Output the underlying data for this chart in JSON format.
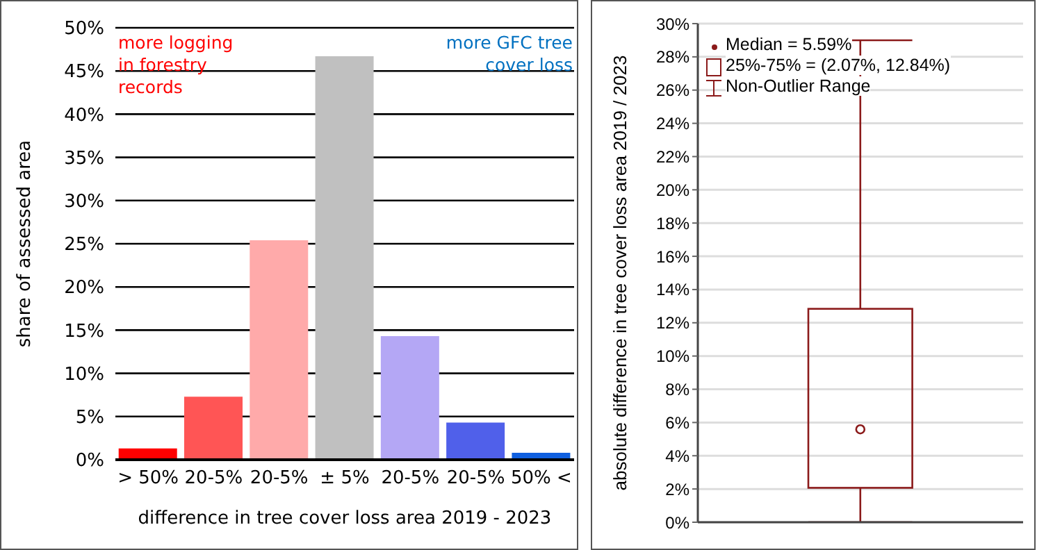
{
  "chart_data": [
    {
      "type": "bar",
      "xlabel": "difference in tree cover loss area 2019 - 2023",
      "ylabel": "share of assessed area",
      "categories": [
        "> 50%",
        "20-5%",
        "20-5%",
        "± 5%",
        "20-5%",
        "20-5%",
        "50% <"
      ],
      "values": [
        1.3,
        7.3,
        25.4,
        46.7,
        14.3,
        4.3,
        0.8
      ],
      "colors": [
        "#ff0000",
        "#ff5555",
        "#ffaaaa",
        "#c0c0c0",
        "#b4a7f5",
        "#5060ea",
        "#1060e0"
      ],
      "ylim": [
        0,
        50
      ],
      "yticks": [
        {
          "value": 0,
          "label": "0%"
        },
        {
          "value": 5,
          "label": "5%"
        },
        {
          "value": 10,
          "label": "10%"
        },
        {
          "value": 15,
          "label": "15%"
        },
        {
          "value": 20,
          "label": "20%"
        },
        {
          "value": 25,
          "label": "25%"
        },
        {
          "value": 30,
          "label": "30%"
        },
        {
          "value": 35,
          "label": "35%"
        },
        {
          "value": 40,
          "label": "40%"
        },
        {
          "value": 45,
          "label": "45%"
        },
        {
          "value": 50,
          "label": "50%"
        }
      ],
      "grid": "y",
      "annotations": [
        "more logging in forestry records",
        "more GFC tree cover loss"
      ]
    },
    {
      "type": "box",
      "ylabel": "absolute difference in tree cover loss area 2019 / 2023",
      "categories": [
        null
      ],
      "boxes": [
        {
          "low": 0,
          "q1": 2.07,
          "median": 5.59,
          "q3": 12.84,
          "high": 29
        }
      ],
      "color": "#8b1a1a",
      "ylim": [
        0,
        30
      ],
      "yticks": [
        {
          "value": 0,
          "label": "0%"
        },
        {
          "value": 2,
          "label": "2%"
        },
        {
          "value": 4,
          "label": "4%"
        },
        {
          "value": 6,
          "label": "6%"
        },
        {
          "value": 8,
          "label": "8%"
        },
        {
          "value": 10,
          "label": "10%"
        },
        {
          "value": 12,
          "label": "12%"
        },
        {
          "value": 14,
          "label": "14%"
        },
        {
          "value": 16,
          "label": "16%"
        },
        {
          "value": 18,
          "label": "18%"
        },
        {
          "value": 20,
          "label": "20%"
        },
        {
          "value": 22,
          "label": "22%"
        },
        {
          "value": 24,
          "label": "24%"
        },
        {
          "value": 26,
          "label": "26%"
        },
        {
          "value": 28,
          "label": "28%"
        },
        {
          "value": 30,
          "label": "30%"
        }
      ],
      "grid": "y",
      "tick_labels": "y",
      "annotations": [
        "Median = 5.59%",
        "25%-75% = (2.07%, 12.84%)",
        "Non-Outlier Range"
      ]
    }
  ]
}
